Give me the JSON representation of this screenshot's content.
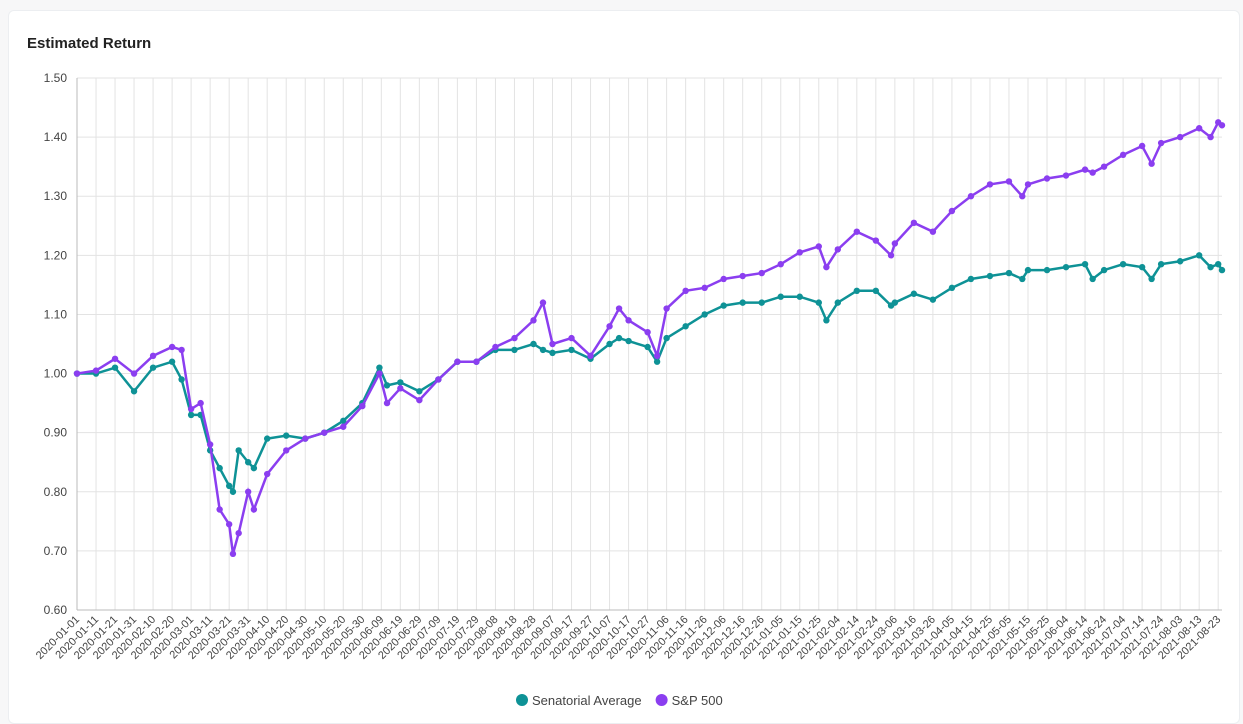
{
  "chart_data": {
    "type": "line",
    "title": "Estimated Return",
    "x": [
      "2020-01-01",
      "2020-01-11",
      "2020-01-21",
      "2020-01-31",
      "2020-02-10",
      "2020-02-20",
      "2020-02-25",
      "2020-03-01",
      "2020-03-06",
      "2020-03-11",
      "2020-03-16",
      "2020-03-21",
      "2020-03-23",
      "2020-03-26",
      "2020-03-31",
      "2020-04-03",
      "2020-04-10",
      "2020-04-20",
      "2020-04-30",
      "2020-05-10",
      "2020-05-20",
      "2020-05-30",
      "2020-06-08",
      "2020-06-12",
      "2020-06-19",
      "2020-06-29",
      "2020-07-09",
      "2020-07-19",
      "2020-07-29",
      "2020-08-08",
      "2020-08-18",
      "2020-08-28",
      "2020-09-02",
      "2020-09-07",
      "2020-09-17",
      "2020-09-27",
      "2020-10-07",
      "2020-10-12",
      "2020-10-17",
      "2020-10-27",
      "2020-11-01",
      "2020-11-06",
      "2020-11-16",
      "2020-11-26",
      "2020-12-06",
      "2020-12-16",
      "2020-12-26",
      "2021-01-05",
      "2021-01-15",
      "2021-01-25",
      "2021-01-29",
      "2021-02-04",
      "2021-02-14",
      "2021-02-24",
      "2021-03-04",
      "2021-03-06",
      "2021-03-16",
      "2021-03-26",
      "2021-04-05",
      "2021-04-15",
      "2021-04-25",
      "2021-05-05",
      "2021-05-12",
      "2021-05-15",
      "2021-05-25",
      "2021-06-04",
      "2021-06-14",
      "2021-06-18",
      "2021-06-24",
      "2021-07-04",
      "2021-07-14",
      "2021-07-19",
      "2021-07-24",
      "2021-08-03",
      "2021-08-13",
      "2021-08-19",
      "2021-08-23",
      "2021-08-25"
    ],
    "series": [
      {
        "name": "Senatorial Average",
        "color": "#0e9296",
        "values": [
          1.0,
          1.0,
          1.01,
          0.97,
          1.01,
          1.02,
          0.99,
          0.93,
          0.93,
          0.87,
          0.84,
          0.81,
          0.8,
          0.87,
          0.85,
          0.84,
          0.89,
          0.895,
          0.89,
          0.9,
          0.92,
          0.95,
          1.01,
          0.98,
          0.985,
          0.97,
          0.99,
          1.02,
          1.02,
          1.04,
          1.04,
          1.05,
          1.04,
          1.035,
          1.04,
          1.025,
          1.05,
          1.06,
          1.055,
          1.045,
          1.02,
          1.06,
          1.08,
          1.1,
          1.115,
          1.12,
          1.12,
          1.13,
          1.13,
          1.12,
          1.09,
          1.12,
          1.14,
          1.14,
          1.115,
          1.12,
          1.135,
          1.125,
          1.145,
          1.16,
          1.165,
          1.17,
          1.16,
          1.175,
          1.175,
          1.18,
          1.185,
          1.16,
          1.175,
          1.185,
          1.18,
          1.16,
          1.185,
          1.19,
          1.2,
          1.18,
          1.185,
          1.175
        ]
      },
      {
        "name": "S&P 500",
        "color": "#8b3ef0",
        "values": [
          1.0,
          1.005,
          1.025,
          1.0,
          1.03,
          1.045,
          1.04,
          0.94,
          0.95,
          0.88,
          0.77,
          0.745,
          0.695,
          0.73,
          0.8,
          0.77,
          0.83,
          0.87,
          0.89,
          0.9,
          0.91,
          0.945,
          1.0,
          0.95,
          0.975,
          0.955,
          0.99,
          1.02,
          1.02,
          1.045,
          1.06,
          1.09,
          1.12,
          1.05,
          1.06,
          1.03,
          1.08,
          1.11,
          1.09,
          1.07,
          1.03,
          1.11,
          1.14,
          1.145,
          1.16,
          1.165,
          1.17,
          1.185,
          1.205,
          1.215,
          1.18,
          1.21,
          1.24,
          1.225,
          1.2,
          1.22,
          1.255,
          1.24,
          1.275,
          1.3,
          1.32,
          1.325,
          1.3,
          1.32,
          1.33,
          1.335,
          1.345,
          1.34,
          1.35,
          1.37,
          1.385,
          1.355,
          1.39,
          1.4,
          1.415,
          1.4,
          1.425,
          1.42
        ]
      }
    ],
    "xlim": [
      "2020-01-01",
      "2021-08-25"
    ],
    "xticks": [
      "2020-01-01",
      "2020-01-11",
      "2020-01-21",
      "2020-01-31",
      "2020-02-10",
      "2020-02-20",
      "2020-03-01",
      "2020-03-11",
      "2020-03-21",
      "2020-03-31",
      "2020-04-10",
      "2020-04-20",
      "2020-04-30",
      "2020-05-10",
      "2020-05-20",
      "2020-05-30",
      "2020-06-09",
      "2020-06-19",
      "2020-06-29",
      "2020-07-09",
      "2020-07-19",
      "2020-07-29",
      "2020-08-08",
      "2020-08-18",
      "2020-08-28",
      "2020-09-07",
      "2020-09-17",
      "2020-09-27",
      "2020-10-07",
      "2020-10-17",
      "2020-10-27",
      "2020-11-06",
      "2020-11-16",
      "2020-11-26",
      "2020-12-06",
      "2020-12-16",
      "2020-12-26",
      "2021-01-05",
      "2021-01-15",
      "2021-01-25",
      "2021-02-04",
      "2021-02-14",
      "2021-02-24",
      "2021-03-06",
      "2021-03-16",
      "2021-03-26",
      "2021-04-05",
      "2021-04-15",
      "2021-04-25",
      "2021-05-05",
      "2021-05-15",
      "2021-05-25",
      "2021-06-04",
      "2021-06-14",
      "2021-06-24",
      "2021-07-04",
      "2021-07-14",
      "2021-07-24",
      "2021-08-03",
      "2021-08-13",
      "2021-08-23"
    ],
    "ylim": [
      0.6,
      1.5
    ],
    "yticks": [
      {
        "value": 0.6,
        "label": "0.60"
      },
      {
        "value": 0.7,
        "label": "0.70"
      },
      {
        "value": 0.8,
        "label": "0.80"
      },
      {
        "value": 0.9,
        "label": "0.90"
      },
      {
        "value": 1.0,
        "label": "1.00"
      },
      {
        "value": 1.1,
        "label": "1.10"
      },
      {
        "value": 1.2,
        "label": "1.20"
      },
      {
        "value": 1.3,
        "label": "1.30"
      },
      {
        "value": 1.4,
        "label": "1.40"
      },
      {
        "value": 1.5,
        "label": "1.50"
      }
    ],
    "grid": true,
    "legend": "bottom"
  }
}
